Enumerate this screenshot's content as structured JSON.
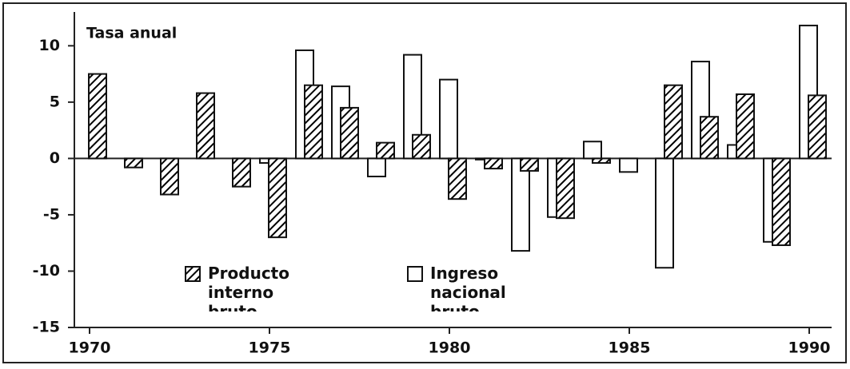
{
  "chart_data": {
    "type": "bar",
    "y_label": "Tasa anual",
    "categories": [
      "1970",
      null,
      null,
      null,
      null,
      "1975",
      null,
      null,
      null,
      null,
      "1980",
      null,
      null,
      null,
      null,
      "1985",
      null,
      null,
      null,
      null,
      "1990"
    ],
    "series": [
      {
        "name": "Producto interno bruto",
        "color": "#000000",
        "pattern": "hatch",
        "values": [
          7.5,
          -0.8,
          -3.2,
          5.8,
          -2.5,
          -7.0,
          6.5,
          4.5,
          1.4,
          2.1,
          -3.6,
          -0.9,
          -1.1,
          -5.3,
          -0.4,
          null,
          6.5,
          3.7,
          5.7,
          -7.7,
          5.6
        ]
      },
      {
        "name": "Ingreso nacional bruto",
        "color": "#ffffff",
        "pattern": "none",
        "values": [
          null,
          null,
          null,
          null,
          null,
          -0.4,
          9.6,
          6.4,
          -1.6,
          9.2,
          7.0,
          -0.1,
          -8.2,
          -5.2,
          1.5,
          -1.2,
          -9.7,
          8.6,
          1.2,
          -7.4,
          11.8
        ]
      }
    ],
    "ylim": [
      -15,
      13
    ],
    "yticks": [
      -15,
      -10,
      -5,
      0,
      5,
      10
    ],
    "grid": false
  }
}
